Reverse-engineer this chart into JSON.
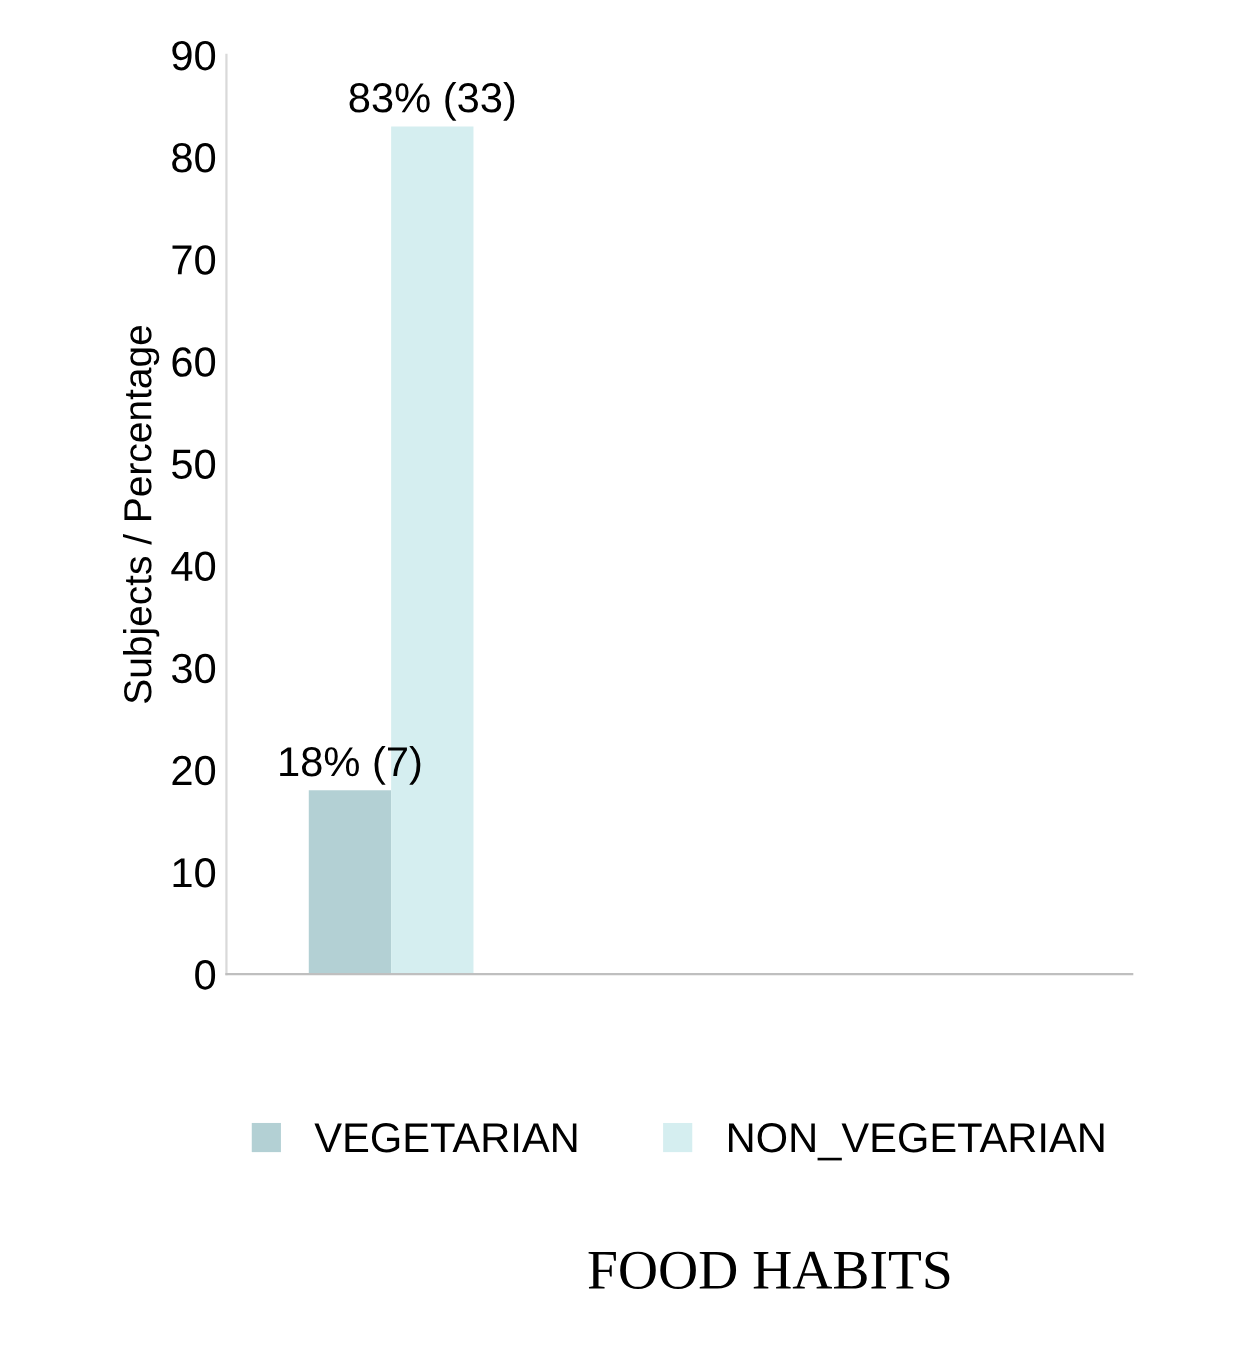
{
  "chart_data": {
    "type": "bar",
    "categories": [
      null
    ],
    "series": [
      {
        "name": "VEGETARIAN",
        "color": "#b3d0d4",
        "values": [
          18
        ],
        "value_labels": [
          "18% (7)"
        ]
      },
      {
        "name": "NON_VEGETARIAN",
        "color": "#d5eef0",
        "values": [
          83
        ],
        "value_labels": [
          "83% (33)"
        ]
      }
    ],
    "ylabel": "Subjects / Percentage",
    "xlabel": "FOOD HABITS",
    "ylim": [
      0,
      90
    ],
    "yticks": [
      0,
      10,
      20,
      30,
      40,
      50,
      60,
      70,
      80,
      90
    ],
    "grid": false,
    "legend": "bottom"
  }
}
